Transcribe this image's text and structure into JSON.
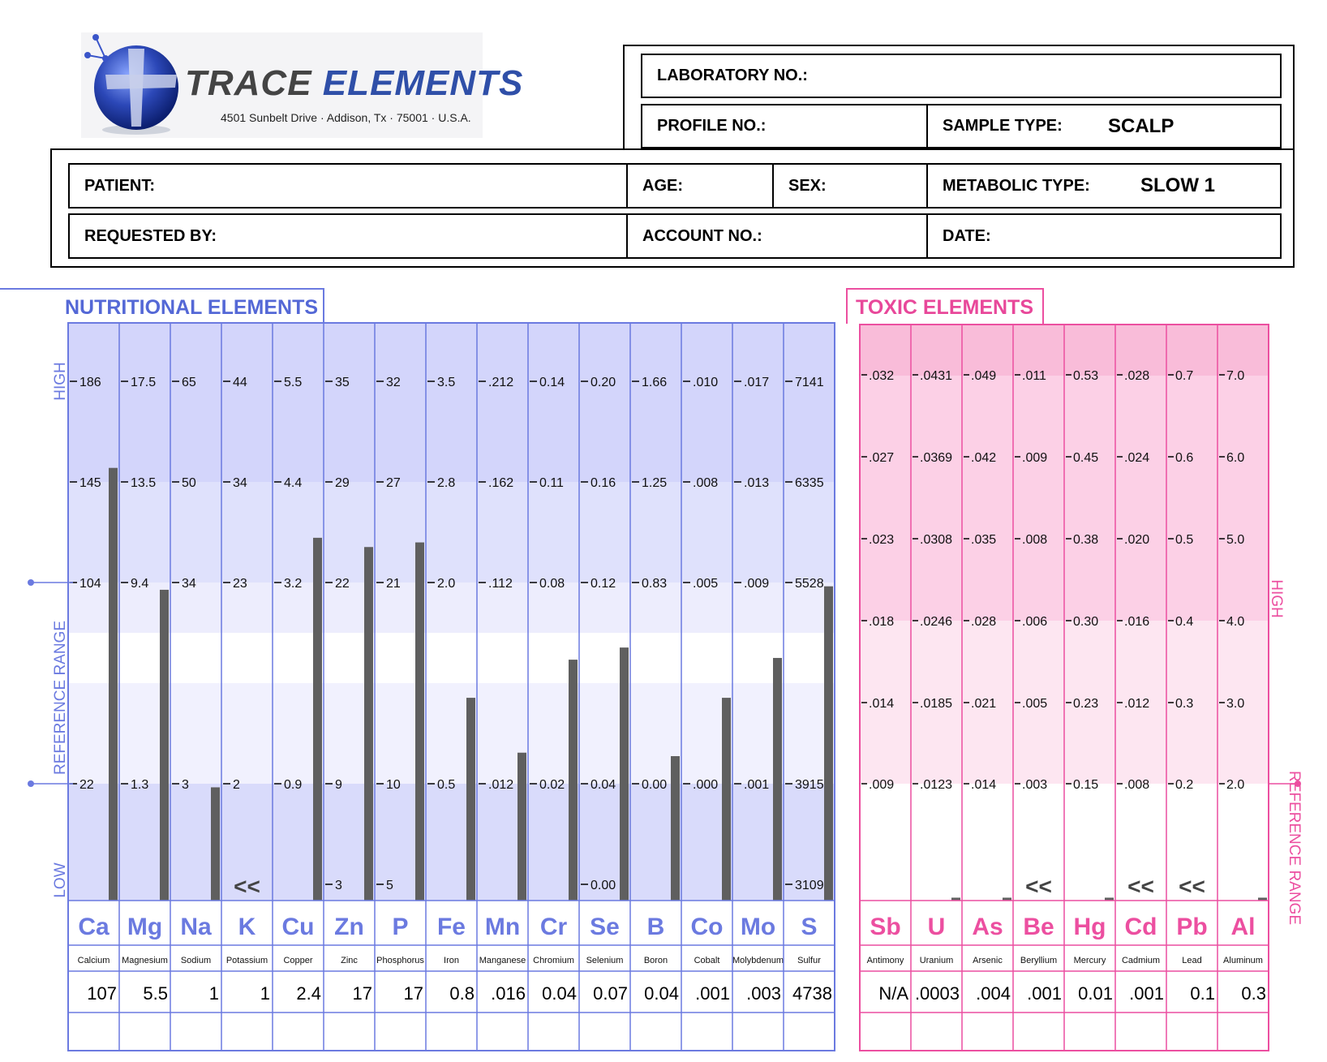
{
  "logo": {
    "brand_part1": "TRACE",
    "brand_part2": "ELEMENTS",
    "address": "4501 Sunbelt Drive · Addison, Tx · 75001 · U.S.A."
  },
  "header": {
    "lab_no_label": "LABORATORY NO.:",
    "profile_no_label": "PROFILE NO.:",
    "sample_type_label": "SAMPLE TYPE:",
    "sample_type_value": "SCALP",
    "patient_label": "PATIENT:",
    "age_label": "AGE:",
    "sex_label": "SEX:",
    "metabolic_type_label": "METABOLIC TYPE:",
    "metabolic_type_value": "SLOW 1",
    "requested_by_label": "REQUESTED BY:",
    "account_no_label": "ACCOUNT NO.:",
    "date_label": "DATE:"
  },
  "nutritional": {
    "title": "NUTRITIONAL  ELEMENTS",
    "axis_high": "HIGH",
    "axis_range": "REFERENCE  RANGE",
    "axis_low": "LOW",
    "elements": [
      {
        "symbol": "Ca",
        "name": "Calcium",
        "ticks": [
          "186",
          "145",
          "104",
          "",
          "22",
          ""
        ],
        "result": "107",
        "level": 0.749
      },
      {
        "symbol": "Mg",
        "name": "Magnesium",
        "ticks": [
          "17.5",
          "13.5",
          "9.4",
          "",
          "1.3",
          ""
        ],
        "result": "5.5",
        "level": 0.538
      },
      {
        "symbol": "Na",
        "name": "Sodium",
        "ticks": [
          "65",
          "50",
          "34",
          "",
          "3",
          ""
        ],
        "result": "1",
        "level": 0.196,
        "below": false
      },
      {
        "symbol": "K",
        "name": "Potassium",
        "ticks": [
          "44",
          "34",
          "23",
          "",
          "2",
          ""
        ],
        "result": "1",
        "level": 0,
        "below": true
      },
      {
        "symbol": "Cu",
        "name": "Copper",
        "ticks": [
          "5.5",
          "4.4",
          "3.2",
          "",
          "0.9",
          ""
        ],
        "result": "2.4",
        "level": 0.628
      },
      {
        "symbol": "Zn",
        "name": "Zinc",
        "ticks": [
          "35",
          "29",
          "22",
          "",
          "9",
          "3"
        ],
        "result": "17",
        "level": 0.612
      },
      {
        "symbol": "P",
        "name": "Phosphorus",
        "ticks": [
          "32",
          "27",
          "21",
          "",
          "10",
          "5"
        ],
        "result": "17",
        "level": 0.62
      },
      {
        "symbol": "Fe",
        "name": "Iron",
        "ticks": [
          "3.5",
          "2.8",
          "2.0",
          "",
          "0.5",
          ""
        ],
        "result": "0.8",
        "level": 0.351
      },
      {
        "symbol": "Mn",
        "name": "Manganese",
        "ticks": [
          ".212",
          ".162",
          ".112",
          "",
          ".012",
          ""
        ],
        "result": ".016",
        "level": 0.256
      },
      {
        "symbol": "Cr",
        "name": "Chromium",
        "ticks": [
          "0.14",
          "0.11",
          "0.08",
          "",
          "0.02",
          ""
        ],
        "result": "0.04",
        "level": 0.417
      },
      {
        "symbol": "Se",
        "name": "Selenium",
        "ticks": [
          "0.20",
          "0.16",
          "0.12",
          "",
          "0.04",
          "0.00"
        ],
        "result": "0.07",
        "level": 0.438
      },
      {
        "symbol": "B",
        "name": "Boron",
        "ticks": [
          "1.66",
          "1.25",
          "0.83",
          "",
          "0.00",
          ""
        ],
        "result": "0.04",
        "level": 0.25
      },
      {
        "symbol": "Co",
        "name": "Cobalt",
        "ticks": [
          ".010",
          ".008",
          ".005",
          "",
          ".000",
          ""
        ],
        "result": ".001",
        "level": 0.351
      },
      {
        "symbol": "Mo",
        "name": "Molybdenum",
        "ticks": [
          ".017",
          ".013",
          ".009",
          "",
          ".001",
          ""
        ],
        "result": ".003",
        "level": 0.42
      },
      {
        "symbol": "S",
        "name": "Sulfur",
        "ticks": [
          "7141",
          "6335",
          "5528",
          "",
          "3915",
          "3109"
        ],
        "result": "4738",
        "level": 0.544
      }
    ]
  },
  "toxic": {
    "title": "TOXIC  ELEMENTS",
    "axis_high": "HIGH",
    "axis_range": "REFERENCE  RANGE",
    "elements": [
      {
        "symbol": "Sb",
        "name": "Antimony",
        "ticks": [
          ".032",
          ".027",
          ".023",
          ".018",
          ".014",
          ".009"
        ],
        "result": "N/A",
        "level": null
      },
      {
        "symbol": "U",
        "name": "Uranium",
        "ticks": [
          ".0431",
          ".0369",
          ".0308",
          ".0246",
          ".0185",
          ".0123"
        ],
        "result": ".0003",
        "level": 0.005
      },
      {
        "symbol": "As",
        "name": "Arsenic",
        "ticks": [
          ".049",
          ".042",
          ".035",
          ".028",
          ".021",
          ".014"
        ],
        "result": ".004",
        "level": 0.005
      },
      {
        "symbol": "Be",
        "name": "Beryllium",
        "ticks": [
          ".011",
          ".009",
          ".008",
          ".006",
          ".005",
          ".003"
        ],
        "result": ".001",
        "level": 0,
        "below": true
      },
      {
        "symbol": "Hg",
        "name": "Mercury",
        "ticks": [
          "0.53",
          "0.45",
          "0.38",
          "0.30",
          "0.23",
          "0.15"
        ],
        "result": "0.01",
        "level": 0.005
      },
      {
        "symbol": "Cd",
        "name": "Cadmium",
        "ticks": [
          ".028",
          ".024",
          ".020",
          ".016",
          ".012",
          ".008"
        ],
        "result": ".001",
        "level": 0,
        "below": true
      },
      {
        "symbol": "Pb",
        "name": "Lead",
        "ticks": [
          "0.7",
          "0.6",
          "0.5",
          "0.4",
          "0.3",
          "0.2"
        ],
        "result": "0.1",
        "level": 0,
        "below": true
      },
      {
        "symbol": "Al",
        "name": "Aluminum",
        "ticks": [
          "7.0",
          "6.0",
          "5.0",
          "4.0",
          "3.0",
          "2.0"
        ],
        "result": "0.3",
        "level": 0.005
      }
    ]
  },
  "below_marker": "<<",
  "colors": {
    "nutritional": "#6b7ae0",
    "toxic": "#ec4fa0",
    "bar": "#5f5f5f"
  }
}
